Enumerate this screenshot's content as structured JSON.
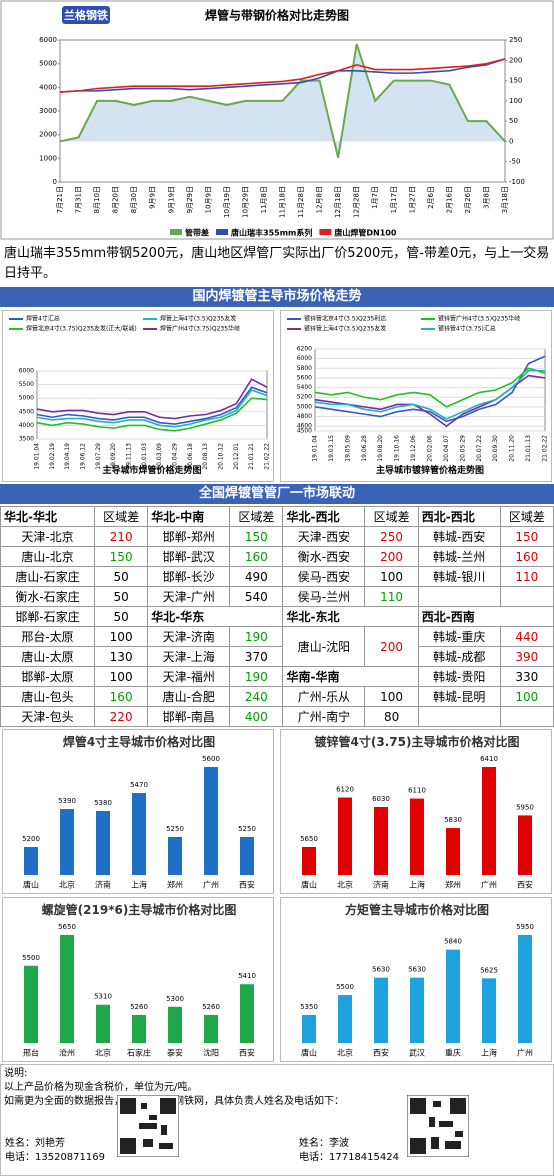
{
  "logo": "兰格钢铁",
  "chart_data": [
    {
      "type": "line",
      "title": "焊管与带钢价格对比走势图",
      "x": [
        "7月21日",
        "7月31日",
        "8月10日",
        "8月20日",
        "8月30日",
        "9月9日",
        "9月19日",
        "9月29日",
        "10月9日",
        "10月19日",
        "10月29日",
        "11月8日",
        "11月18日",
        "11月28日",
        "12月8日",
        "12月18日",
        "12月28日",
        "1月7日",
        "1月17日",
        "1月27日",
        "2月6日",
        "2月16日",
        "2月26日",
        "3月8日",
        "3月18日"
      ],
      "ylim": [
        0,
        6000
      ],
      "yticks": [
        0,
        1000,
        2000,
        3000,
        4000,
        5000,
        6000
      ],
      "y2lim": [
        -100,
        250
      ],
      "y2ticks": [
        -100,
        -50,
        0,
        50,
        100,
        150,
        200,
        250
      ],
      "grid": false,
      "legend": "bottom",
      "series": [
        {
          "name": "管带差",
          "type": "area",
          "axis": "y2",
          "color": "#6aa84f",
          "values": [
            0,
            10,
            100,
            100,
            90,
            100,
            100,
            110,
            100,
            90,
            100,
            100,
            100,
            150,
            150,
            -40,
            240,
            100,
            150,
            150,
            150,
            140,
            50,
            50,
            0
          ]
        },
        {
          "name": "唐山瑞丰355mm系列",
          "color": "#2f4fb0",
          "values": [
            3800,
            3850,
            3850,
            3900,
            3950,
            3950,
            3950,
            3900,
            3950,
            4000,
            4050,
            4100,
            4150,
            4200,
            4400,
            4700,
            4700,
            4650,
            4600,
            4600,
            4650,
            4700,
            4850,
            4950,
            5200
          ]
        },
        {
          "name": "唐山焊管DN100",
          "color": "#e02020",
          "values": [
            3800,
            3850,
            3950,
            4000,
            4050,
            4050,
            4050,
            4050,
            4050,
            4100,
            4150,
            4200,
            4250,
            4350,
            4550,
            4700,
            4950,
            4750,
            4750,
            4750,
            4800,
            4850,
            4900,
            5000,
            5200
          ]
        }
      ]
    },
    {
      "type": "line",
      "title": "主导城市焊管价格走势图",
      "x": [
        "19.01.04",
        "19.02.19",
        "19.04.19",
        "19.06.12",
        "19.07.29",
        "19.09.20",
        "19.11.13",
        "20.01.03",
        "20.03.09",
        "20.04.29",
        "20.06.18",
        "20.08.13",
        "20.10.12",
        "20.12.01",
        "21.01.21",
        "21.02.22"
      ],
      "ylim": [
        3500,
        6000
      ],
      "yticks": [
        3500,
        4000,
        4500,
        5000,
        5500,
        6000
      ],
      "grid": true,
      "legend": "top",
      "series": [
        {
          "name": "焊管4寸汇总",
          "color": "#2f5cc4",
          "values": [
            4400,
            4300,
            4400,
            4350,
            4250,
            4200,
            4300,
            4300,
            4100,
            4050,
            4150,
            4250,
            4400,
            4650,
            5400,
            5200
          ]
        },
        {
          "name": "焊管上海4寸(3.5)Q235友发",
          "color": "#20b0d0",
          "values": [
            4300,
            4200,
            4250,
            4250,
            4150,
            4100,
            4200,
            4200,
            4000,
            3950,
            4050,
            4200,
            4300,
            4550,
            5300,
            5100
          ]
        },
        {
          "name": "焊管北京4寸(3.75)Q235友发(正大/联诚)",
          "color": "#22c022",
          "values": [
            4100,
            4000,
            4100,
            4050,
            3950,
            3900,
            4000,
            4000,
            3850,
            3800,
            3900,
            4050,
            4200,
            4450,
            5000,
            4950
          ]
        },
        {
          "name": "焊管广州4寸(3.75)Q235华岐",
          "color": "#7b2c9e",
          "values": [
            4600,
            4500,
            4550,
            4550,
            4450,
            4400,
            4500,
            4500,
            4300,
            4250,
            4350,
            4400,
            4550,
            4800,
            5700,
            5400
          ]
        }
      ]
    },
    {
      "type": "line",
      "title": "主导城市镀锌管价格走势图",
      "x": [
        "19.01.04",
        "19.03.15",
        "19.05.09",
        "19.06.28",
        "19.08.20",
        "19.10.16",
        "19.12.06",
        "20.02.06",
        "20.04.07",
        "20.05.29",
        "20.07.22",
        "20.09.30",
        "20.11.20",
        "21.01.13",
        "21.02.22"
      ],
      "ylim": [
        4500,
        6200
      ],
      "yticks": [
        4500,
        4600,
        4800,
        5000,
        5200,
        5400,
        5600,
        5800,
        6000,
        6200
      ],
      "grid": true,
      "legend": "top",
      "series": [
        {
          "name": "镀锌管北京4寸(3.5)Q235利达",
          "color": "#2f5cc4",
          "values": [
            5000,
            4950,
            4900,
            4850,
            4800,
            4900,
            4950,
            4900,
            4700,
            4800,
            4950,
            5050,
            5300,
            5900,
            6050
          ]
        },
        {
          "name": "镀锌管广州4寸(3.5)Q235华岐",
          "color": "#22c022",
          "values": [
            5300,
            5250,
            5300,
            5200,
            5150,
            5250,
            5300,
            5250,
            5000,
            5150,
            5300,
            5350,
            5500,
            5800,
            5700
          ]
        },
        {
          "name": "镀锌管上海4寸(3.5)Q235友发",
          "color": "#7b2c9e",
          "values": [
            5150,
            5100,
            5050,
            5000,
            4950,
            5050,
            5050,
            4850,
            4600,
            4850,
            5000,
            5150,
            5400,
            5650,
            5600
          ]
        },
        {
          "name": "镀锌管4寸(3.75)汇总",
          "color": "#20b0d0",
          "values": [
            5100,
            5050,
            5050,
            4950,
            4900,
            5000,
            5050,
            4950,
            4750,
            4900,
            5050,
            5150,
            5400,
            5750,
            5750
          ]
        }
      ]
    },
    {
      "type": "bar",
      "title": "焊管4寸主导城市价格对比图",
      "color": "#1f6fc5",
      "categories": [
        "唐山",
        "北京",
        "济南",
        "上海",
        "郑州",
        "广州",
        "西安"
      ],
      "values": [
        5200,
        5390,
        5380,
        5470,
        5250,
        5600,
        5250
      ]
    },
    {
      "type": "bar",
      "title": "镀锌管4寸(3.75)主导城市价格对比图",
      "color": "#e00000",
      "categories": [
        "唐山",
        "北京",
        "济南",
        "上海",
        "郑州",
        "广州",
        "西安"
      ],
      "values": [
        5650,
        6120,
        6030,
        6110,
        5830,
        6410,
        5950
      ]
    },
    {
      "type": "bar",
      "title": "螺旋管(219*6)主导城市价格对比图",
      "color": "#1fa84a",
      "categories": [
        "邢台",
        "沧州",
        "北京",
        "石家庄",
        "泰安",
        "沈阳",
        "西安"
      ],
      "values": [
        5500,
        5650,
        5310,
        5260,
        5300,
        5260,
        5410
      ]
    },
    {
      "type": "bar",
      "title": "方矩管主导城市价格对比图",
      "color": "#1fa3e0",
      "categories": [
        "唐山",
        "北京",
        "西安",
        "武汉",
        "重庆",
        "上海",
        "广州"
      ],
      "values": [
        5350,
        5500,
        5630,
        5630,
        5840,
        5625,
        5950
      ]
    }
  ],
  "summary": "唐山瑞丰355mm带钢5200元，唐山地区焊管厂实际出厂价5200元，管-带差0元，与上一交易日持平。",
  "sections": [
    "国内焊镀管主导市场价格走势",
    "全国焊镀管管厂一市场联动"
  ],
  "table": {
    "rows": [
      [
        {
          "text": "华北-华北",
          "header": true
        },
        "区域差",
        {
          "text": "华北-中南",
          "header": true
        },
        "区域差",
        {
          "text": "华北-西北",
          "header": true
        },
        "区域差",
        {
          "text": "西北-西北",
          "header": true
        },
        "区域差"
      ],
      [
        "天津-北京",
        {
          "text": "210",
          "color": "#e00000"
        },
        "邯郸-郑州",
        {
          "text": "150",
          "color": "#00a000"
        },
        "天津-西安",
        {
          "text": "250",
          "color": "#e00000"
        },
        "韩城-西安",
        {
          "text": "150",
          "color": "#e00000"
        }
      ],
      [
        "唐山-北京",
        {
          "text": "150",
          "color": "#00a000"
        },
        "邯郸-武汉",
        {
          "text": "160",
          "color": "#00a000"
        },
        "衡水-西安",
        {
          "text": "200",
          "color": "#e00000"
        },
        "韩城-兰州",
        {
          "text": "160",
          "color": "#e00000"
        }
      ],
      [
        "唐山-石家庄",
        "50",
        "邯郸-长沙",
        "490",
        "侯马-西安",
        "100",
        "韩城-银川",
        {
          "text": "110",
          "color": "#e00000"
        }
      ],
      [
        "衡水-石家庄",
        "50",
        "天津-广州",
        "540",
        "侯马-兰州",
        {
          "text": "110",
          "color": "#00a000"
        }
      ],
      [
        "邯郸-石家庄",
        "50",
        {
          "text": "华北-华东",
          "header": true
        },
        {
          "text": "华北-东北",
          "header": true
        },
        {
          "text": "西北-西南",
          "header": true
        }
      ],
      [
        "邢台-太原",
        "100",
        "天津-济南",
        {
          "text": "190",
          "color": "#00a000"
        },
        "唐山-沈阳",
        {
          "text": "200",
          "color": "#e00000"
        },
        "韩城-重庆",
        {
          "text": "440",
          "color": "#e00000"
        }
      ],
      [
        "唐山-太原",
        "130",
        "天津-上海",
        "370",
        null,
        null,
        "韩城-成都",
        {
          "text": "390",
          "color": "#e00000"
        }
      ],
      [
        "邯郸-太原",
        "100",
        "天津-福州",
        {
          "text": "190",
          "color": "#00a000"
        },
        {
          "text": "华南-华南",
          "header": true
        },
        "韩城-贵阳",
        "330"
      ],
      [
        "唐山-包头",
        {
          "text": "160",
          "color": "#00a000"
        },
        "唐山-合肥",
        {
          "text": "240",
          "color": "#00a000"
        },
        "广州-乐从",
        "100",
        "韩城-昆明",
        {
          "text": "100",
          "color": "#00a000"
        }
      ],
      [
        "天津-包头",
        {
          "text": "220",
          "color": "#e00000"
        },
        "邯郸-南昌",
        {
          "text": "400",
          "color": "#00a000"
        },
        "广州-南宁",
        "80"
      ]
    ]
  },
  "notes": {
    "title": "说明:",
    "lines": [
      "以上产品价格为现金含税价，单位为元/吨。",
      "如需更为全面的数据报告，请联系兰格钢铁网，具体负责人姓名及电话如下："
    ],
    "contacts": [
      {
        "name": "姓名：刘艳芳",
        "phone": "电话：13520871169"
      },
      {
        "name": "姓名：李波",
        "phone": "电话：17718415424"
      }
    ]
  }
}
